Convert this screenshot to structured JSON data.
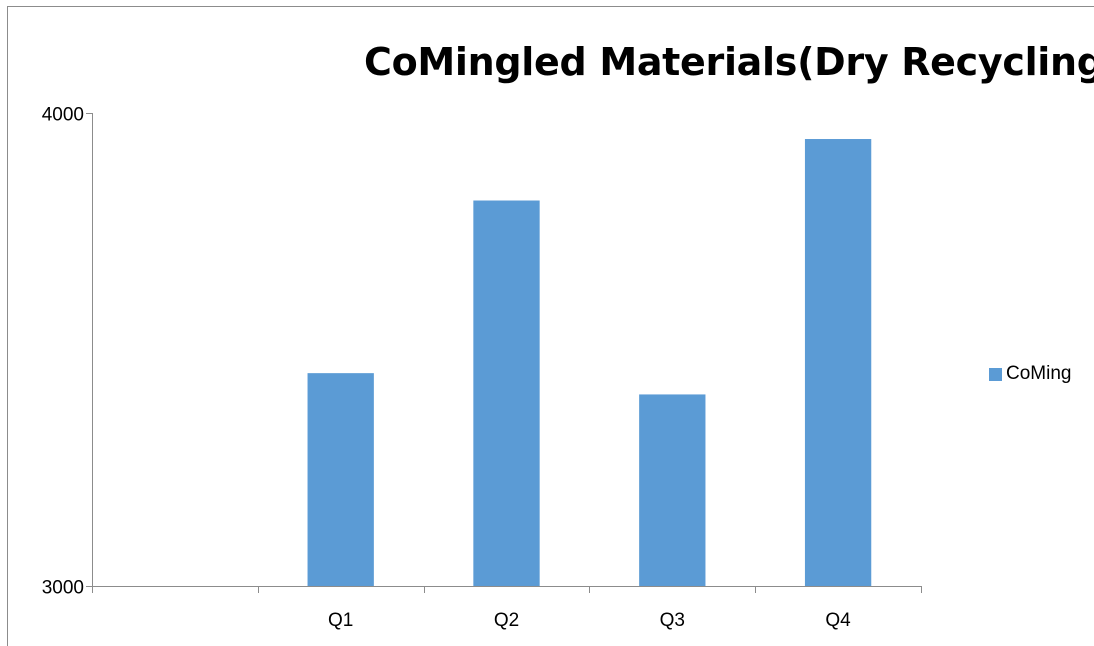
{
  "chart_data": {
    "type": "bar",
    "title": "CoMingled Materials(Dry Recycling)",
    "xlabel": "",
    "ylabel": "",
    "categories": [
      "",
      "Q1",
      "Q2",
      "Q3",
      "Q4"
    ],
    "series": [
      {
        "name": "CoMingled Materials(Dry Recycling)",
        "values": [
          null,
          3450,
          3815,
          3405,
          3945
        ],
        "color": "#5b9bd5"
      }
    ],
    "ylim": [
      3000,
      4000
    ],
    "yticks": [
      "3000",
      "4000"
    ],
    "grid": false,
    "legend_position": "right",
    "legend_label_visible": "CoMing",
    "axis_color": "#8c8c8c"
  }
}
